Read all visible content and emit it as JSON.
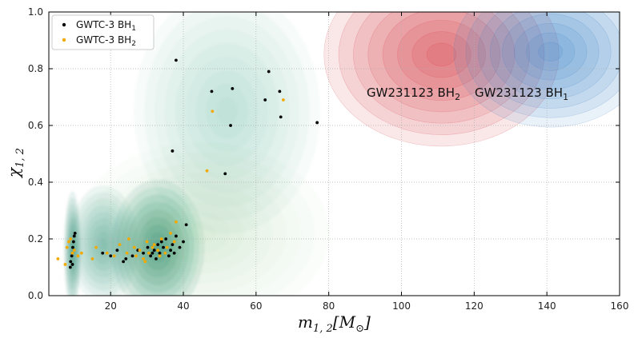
{
  "chart_data": {
    "type": "scatter",
    "title": "",
    "xlabel": "m",
    "xlabel_sub": "1, 2",
    "xlabel_unit": "[M",
    "xlabel_unit_sub": "⊙",
    "xlabel_unit_close": "]",
    "ylabel": "χ",
    "ylabel_sub": "1, 2",
    "xlim": [
      3,
      160
    ],
    "ylim": [
      0.0,
      1.0
    ],
    "xticks": [
      20,
      40,
      60,
      80,
      100,
      120,
      140,
      160
    ],
    "yticks": [
      0.0,
      0.2,
      0.4,
      0.6,
      0.8,
      1.0
    ],
    "xtick_labels": [
      "20",
      "40",
      "60",
      "80",
      "100",
      "120",
      "140",
      "160"
    ],
    "ytick_labels": [
      "0.0",
      "0.2",
      "0.4",
      "0.6",
      "0.8",
      "1.0"
    ],
    "grid": true,
    "legend_position": "top-left",
    "colors": {
      "bh1_points": "#000000",
      "bh2_points": "#f2a900",
      "population_kde": "#0a7f5a",
      "gw231123_bh2": "#d6303a",
      "gw231123_bh1": "#3b7dc4",
      "grid": "#b0b0b0"
    },
    "series": [
      {
        "name": "GWTC-3 BH",
        "name_sub": "1",
        "marker": "point",
        "color": "#000000",
        "points": [
          [
            8.9,
            0.1
          ],
          [
            9.0,
            0.12
          ],
          [
            9.3,
            0.14
          ],
          [
            9.6,
            0.17
          ],
          [
            9.8,
            0.19
          ],
          [
            10.0,
            0.21
          ],
          [
            10.2,
            0.22
          ],
          [
            9.5,
            0.11
          ],
          [
            17.8,
            0.15
          ],
          [
            20.0,
            0.14
          ],
          [
            21.8,
            0.16
          ],
          [
            23.5,
            0.12
          ],
          [
            24.2,
            0.13
          ],
          [
            26.0,
            0.14
          ],
          [
            27.5,
            0.16
          ],
          [
            29.0,
            0.15
          ],
          [
            30.2,
            0.17
          ],
          [
            31.0,
            0.14
          ],
          [
            31.5,
            0.15
          ],
          [
            32.0,
            0.16
          ],
          [
            32.5,
            0.13
          ],
          [
            33.0,
            0.18
          ],
          [
            33.5,
            0.15
          ],
          [
            34.0,
            0.19
          ],
          [
            34.5,
            0.17
          ],
          [
            35.2,
            0.2
          ],
          [
            36.0,
            0.14
          ],
          [
            36.5,
            0.16
          ],
          [
            37.0,
            0.18
          ],
          [
            38.0,
            0.21
          ],
          [
            39.0,
            0.17
          ],
          [
            40.0,
            0.19
          ],
          [
            40.8,
            0.25
          ],
          [
            37.5,
            0.15
          ],
          [
            38.0,
            0.83
          ],
          [
            47.8,
            0.72
          ],
          [
            53.5,
            0.73
          ],
          [
            63.5,
            0.79
          ],
          [
            62.5,
            0.69
          ],
          [
            66.5,
            0.72
          ],
          [
            66.8,
            0.63
          ],
          [
            53.0,
            0.6
          ],
          [
            76.8,
            0.61
          ],
          [
            37.0,
            0.51
          ],
          [
            51.5,
            0.43
          ]
        ]
      },
      {
        "name": "GWTC-3 BH",
        "name_sub": "2",
        "marker": "point",
        "color": "#f2a900",
        "points": [
          [
            5.5,
            0.13
          ],
          [
            7.5,
            0.11
          ],
          [
            8.0,
            0.17
          ],
          [
            8.5,
            0.19
          ],
          [
            9.0,
            0.2
          ],
          [
            9.5,
            0.15
          ],
          [
            10.0,
            0.16
          ],
          [
            11.0,
            0.14
          ],
          [
            12.0,
            0.15
          ],
          [
            15.0,
            0.13
          ],
          [
            16.0,
            0.17
          ],
          [
            19.0,
            0.15
          ],
          [
            21.0,
            0.14
          ],
          [
            22.5,
            0.18
          ],
          [
            24.5,
            0.15
          ],
          [
            25.0,
            0.2
          ],
          [
            26.5,
            0.17
          ],
          [
            28.0,
            0.16
          ],
          [
            29.0,
            0.13
          ],
          [
            30.0,
            0.19
          ],
          [
            30.5,
            0.15
          ],
          [
            31.5,
            0.17
          ],
          [
            32.0,
            0.18
          ],
          [
            33.0,
            0.16
          ],
          [
            33.5,
            0.14
          ],
          [
            34.0,
            0.2
          ],
          [
            35.0,
            0.15
          ],
          [
            35.5,
            0.17
          ],
          [
            36.5,
            0.22
          ],
          [
            37.5,
            0.19
          ],
          [
            38.0,
            0.26
          ],
          [
            29.5,
            0.12
          ],
          [
            27.0,
            0.14
          ],
          [
            48.0,
            0.65
          ],
          [
            67.5,
            0.69
          ],
          [
            46.5,
            0.44
          ]
        ]
      }
    ],
    "posteriors": [
      {
        "name": "GW231123 BH",
        "name_sub": "2",
        "color": "#d6303a",
        "mode": [
          111,
          0.85
        ],
        "width": [
          17,
          0.17
        ]
      },
      {
        "name": "GW231123 BH",
        "name_sub": "1",
        "color": "#3b7dc4",
        "mode": [
          141,
          0.86
        ],
        "width": [
          14,
          0.14
        ]
      }
    ],
    "population_density": {
      "color": "#0a7f5a",
      "regions": [
        {
          "center": [
            9.5,
            0.16
          ],
          "spread": [
            1.5,
            0.13
          ],
          "weight": 1.0
        },
        {
          "center": [
            33,
            0.17
          ],
          "spread": [
            8,
            0.15
          ],
          "weight": 1.0
        },
        {
          "center": [
            18,
            0.18
          ],
          "spread": [
            6,
            0.13
          ],
          "weight": 0.7
        },
        {
          "center": [
            52,
            0.65
          ],
          "spread": [
            16,
            0.27
          ],
          "weight": 0.35
        },
        {
          "center": [
            45,
            0.22
          ],
          "spread": [
            22,
            0.2
          ],
          "weight": 0.18
        }
      ]
    },
    "annotations": [
      {
        "text": "GW231123 BH",
        "text_sub": "2",
        "at": [
          90,
          0.71
        ]
      },
      {
        "text": "GW231123 BH",
        "text_sub": "1",
        "at": [
          120,
          0.71
        ]
      }
    ]
  }
}
